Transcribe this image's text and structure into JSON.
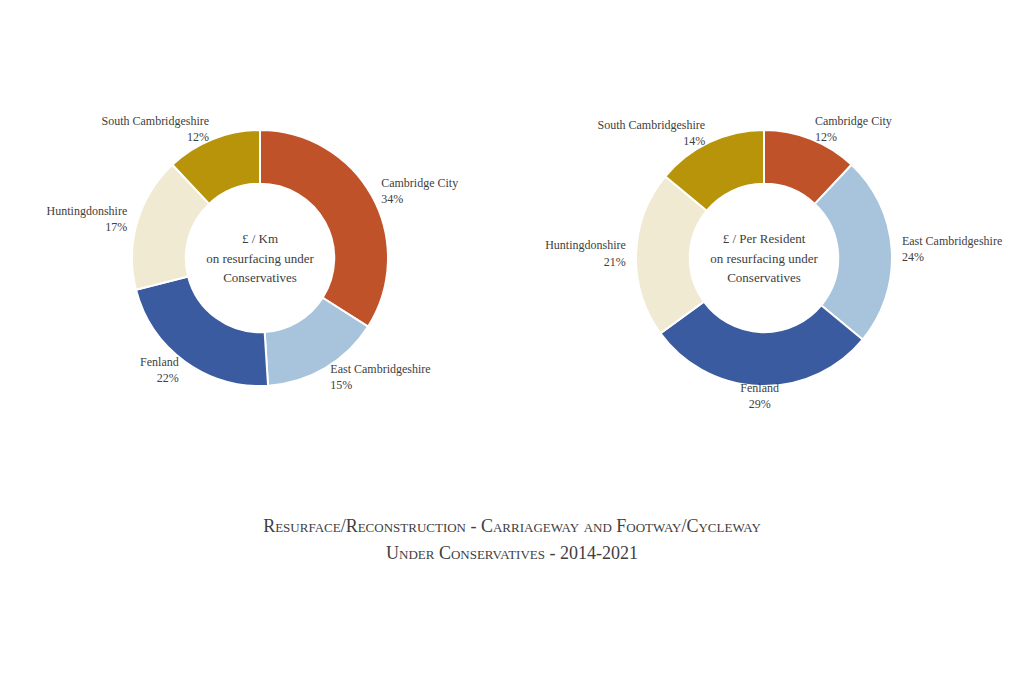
{
  "title": "Resurface/Reconstruction - Carriageway and Footway/Cycleway",
  "subtitle": "Under Conservatives - 2014-2021",
  "chart_data": [
    {
      "type": "pie",
      "title": "£ / Km\non resurfacing under\nConservatives",
      "categories": [
        "Cambridge City",
        "East Cambridgeshire",
        "Fenland",
        "Huntingdonshire",
        "South Cambridgeshire"
      ],
      "values": [
        34,
        15,
        22,
        17,
        12
      ],
      "value_labels": [
        "34%",
        "15%",
        "22%",
        "17%",
        "12%"
      ],
      "colors": [
        "#C0522A",
        "#A8C4DC",
        "#3A5BA0",
        "#F0EAD2",
        "#B8940A"
      ],
      "data_labels": true
    },
    {
      "type": "pie",
      "title": "£ / Per Resident\non resurfacing under\nConservatives",
      "categories": [
        "Cambridge City",
        "East Cambridgeshire",
        "Fenland",
        "Huntingdonshire",
        "South Cambridgeshire"
      ],
      "values": [
        12,
        24,
        29,
        21,
        14
      ],
      "value_labels": [
        "12%",
        "24%",
        "29%",
        "21%",
        "14%"
      ],
      "colors": [
        "#C0522A",
        "#A8C4DC",
        "#3A5BA0",
        "#F0EAD2",
        "#B8940A"
      ],
      "data_labels": true
    }
  ]
}
